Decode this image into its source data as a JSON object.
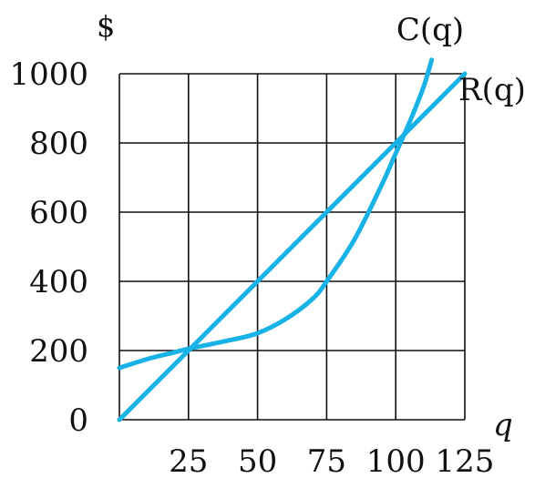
{
  "chart_data": {
    "type": "line",
    "xlabel": "q",
    "ylabel": "$",
    "xlim": [
      0,
      125
    ],
    "ylim": [
      0,
      1000
    ],
    "x_ticks": [
      0,
      25,
      50,
      75,
      100,
      125
    ],
    "x_tick_labels": [
      "25",
      "50",
      "75",
      "100",
      "125"
    ],
    "y_ticks": [
      0,
      200,
      400,
      600,
      800,
      1000
    ],
    "y_tick_labels": [
      "0",
      "200",
      "400",
      "600",
      "800",
      "1000"
    ],
    "grid": true,
    "color": "#19b2e6",
    "series": [
      {
        "name": "C(q)",
        "x": [
          0,
          10,
          20,
          25,
          40,
          50,
          60,
          70,
          75,
          85,
          95,
          100,
          105,
          110,
          113
        ],
        "y": [
          150,
          175,
          195,
          205,
          230,
          250,
          290,
          350,
          400,
          520,
          680,
          770,
          860,
          960,
          1040
        ]
      },
      {
        "name": "R(q)",
        "x": [
          0,
          25,
          50,
          75,
          100,
          125
        ],
        "y": [
          0,
          200,
          400,
          600,
          800,
          1000
        ]
      }
    ]
  }
}
